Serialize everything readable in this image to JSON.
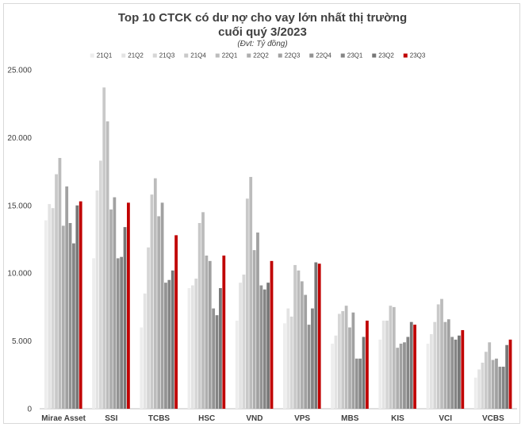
{
  "chart_data": {
    "type": "bar",
    "title_line1": "Top  10 CTCK có dư nợ cho vay lớn nhất thị trường",
    "title_line2": "cuối quý 3/2023",
    "subtitle": "(Đvt: Tỷ đồng)",
    "xlabel": "",
    "ylabel": "",
    "ylim": [
      0,
      25000
    ],
    "yticks": [
      0,
      5000,
      10000,
      15000,
      20000,
      25000
    ],
    "ytick_labels": [
      "0",
      "5.000",
      "10.000",
      "15.000",
      "20.000",
      "25.000"
    ],
    "grid": false,
    "legend_position": "top",
    "categories": [
      "Mirae Asset",
      "SSI",
      "TCBS",
      "HSC",
      "VND",
      "VPS",
      "MBS",
      "KIS",
      "VCI",
      "VCBS"
    ],
    "series": [
      {
        "name": "21Q1",
        "color": "#ededed",
        "values": [
          13900,
          11100,
          6000,
          8900,
          6500,
          6300,
          4800,
          5100,
          4800,
          2300
        ]
      },
      {
        "name": "21Q2",
        "color": "#e3e3e3",
        "values": [
          15100,
          16100,
          8500,
          9100,
          9300,
          7400,
          5400,
          6500,
          5500,
          2900
        ]
      },
      {
        "name": "21Q3",
        "color": "#d6d6d6",
        "values": [
          14800,
          18300,
          11900,
          9600,
          9900,
          6800,
          7000,
          6500,
          6400,
          3400
        ]
      },
      {
        "name": "21Q4",
        "color": "#c9c9c9",
        "values": [
          17300,
          23700,
          15800,
          13700,
          15500,
          10600,
          7200,
          7600,
          7700,
          4200
        ]
      },
      {
        "name": "22Q1",
        "color": "#bcbcbc",
        "values": [
          18500,
          21200,
          17000,
          14500,
          17100,
          10200,
          7600,
          7500,
          8100,
          4900
        ]
      },
      {
        "name": "22Q2",
        "color": "#aeaeae",
        "values": [
          13500,
          14700,
          14200,
          11300,
          11700,
          9400,
          6000,
          4500,
          6400,
          3600
        ]
      },
      {
        "name": "22Q3",
        "color": "#a1a1a1",
        "values": [
          16400,
          15600,
          15200,
          10900,
          13000,
          8400,
          7100,
          4800,
          6600,
          3700
        ]
      },
      {
        "name": "22Q4",
        "color": "#939393",
        "values": [
          13700,
          11100,
          9300,
          7400,
          9100,
          6200,
          3700,
          4900,
          5300,
          3100
        ]
      },
      {
        "name": "23Q1",
        "color": "#858585",
        "values": [
          12200,
          11200,
          9500,
          6900,
          8800,
          7400,
          3700,
          5300,
          5100,
          3100
        ]
      },
      {
        "name": "23Q2",
        "color": "#777777",
        "values": [
          15000,
          13400,
          10200,
          8900,
          9300,
          10800,
          5300,
          6400,
          5400,
          4700
        ]
      },
      {
        "name": "23Q3",
        "color": "#c00000",
        "values": [
          15300,
          15200,
          12800,
          11300,
          10900,
          10700,
          6500,
          6200,
          5800,
          5100
        ]
      }
    ]
  }
}
